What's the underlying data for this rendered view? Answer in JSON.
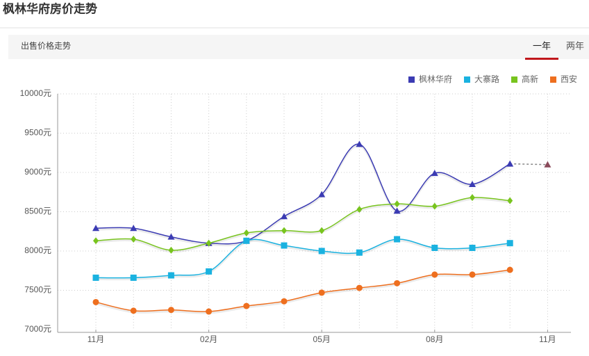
{
  "header": {
    "title": "枫林华府房价走势"
  },
  "tabs": {
    "section": "出售价格走势",
    "items": [
      "一年",
      "两年"
    ],
    "active": 0
  },
  "chart_data": {
    "type": "line",
    "categories": [
      "11月",
      null,
      null,
      "02月",
      null,
      null,
      "05月",
      null,
      null,
      "08月",
      null,
      null,
      "11月"
    ],
    "ylim": [
      7000,
      10000
    ],
    "yticks": [
      {
        "value": 7000,
        "label": "7000元"
      },
      {
        "value": 7500,
        "label": "7500元"
      },
      {
        "value": 8000,
        "label": "8000元"
      },
      {
        "value": 8500,
        "label": "8500元"
      },
      {
        "value": 9000,
        "label": "9000元"
      },
      {
        "value": 9500,
        "label": "9500元"
      },
      {
        "value": 10000,
        "label": "10000元"
      }
    ],
    "grid": true,
    "legend": "top-right",
    "dashed_last_segment": true,
    "series": [
      {
        "name": "枫林华府",
        "color": "#3b3bb3",
        "marker": "triangle",
        "values": [
          8290,
          8290,
          8180,
          8100,
          8130,
          8440,
          8720,
          9360,
          8510,
          8990,
          8850,
          9110,
          9100
        ]
      },
      {
        "name": "大寨路",
        "color": "#1ab2e0",
        "marker": "square",
        "values": [
          7660,
          7660,
          7690,
          7740,
          8130,
          8070,
          8000,
          7980,
          8150,
          8040,
          8040,
          8100,
          null
        ]
      },
      {
        "name": "高新",
        "color": "#78c41e",
        "marker": "diamond",
        "values": [
          8130,
          8150,
          8010,
          8100,
          8230,
          8260,
          8260,
          8530,
          8600,
          8570,
          8680,
          8640,
          null
        ]
      },
      {
        "name": "西安",
        "color": "#ee6f1f",
        "marker": "circle",
        "values": [
          7350,
          7240,
          7250,
          7230,
          7300,
          7360,
          7470,
          7530,
          7590,
          7700,
          7700,
          7760,
          null
        ]
      }
    ]
  }
}
